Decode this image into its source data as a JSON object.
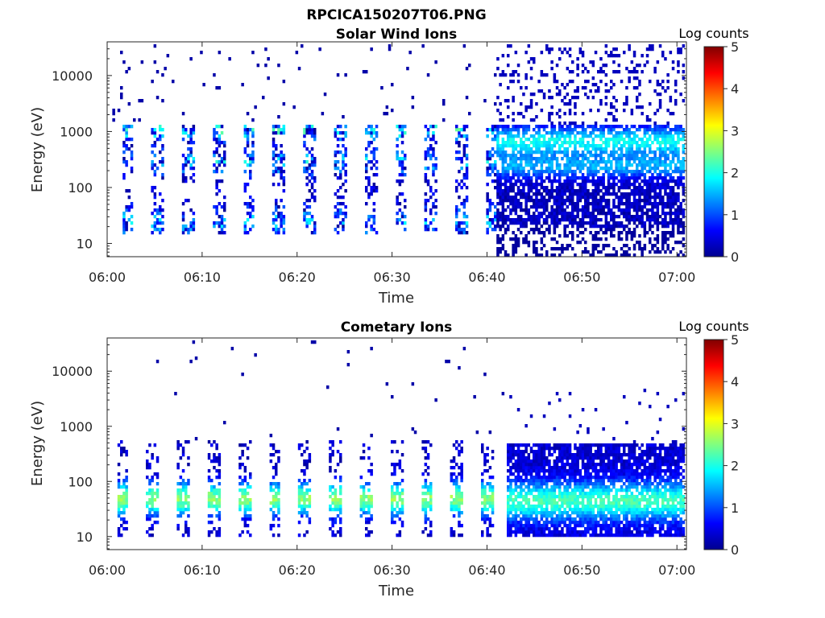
{
  "figure": {
    "title": "RPCICA150207T06.PNG"
  },
  "chart_data": [
    {
      "type": "heatmap",
      "title": "Solar Wind Ions",
      "xlabel": "Time",
      "ylabel": "Energy (eV)",
      "x_ticks": [
        "06:00",
        "06:10",
        "06:20",
        "06:30",
        "06:40",
        "06:50",
        "07:00"
      ],
      "x_range_minutes": [
        0,
        61
      ],
      "y_ticks": [
        10,
        100,
        1000,
        10000
      ],
      "y_tick_labels": [
        "10",
        "100",
        "1000",
        "10000"
      ],
      "y_scale": "log",
      "y_range_eV": [
        5.8,
        40000
      ],
      "colorbar": {
        "title": "Log counts",
        "range": [
          0,
          5
        ],
        "ticks": [
          "0",
          "1",
          "2",
          "3",
          "4",
          "5"
        ],
        "colormap": "jet"
      },
      "patterns": {
        "sweep_period_min": 3.2,
        "sweep_start_min": 1.5,
        "sparse_until_min": 37,
        "band_peak_eV": 1100,
        "band_mid_eV": 300,
        "band_low_eV": 25,
        "dense_energy_range_eV": [
          20,
          1500
        ],
        "dense_start_min": 41
      }
    },
    {
      "type": "heatmap",
      "title": "Cometary Ions",
      "xlabel": "Time",
      "ylabel": "Energy (eV)",
      "x_ticks": [
        "06:00",
        "06:10",
        "06:20",
        "06:30",
        "06:40",
        "06:50",
        "07:00"
      ],
      "x_range_minutes": [
        0,
        61
      ],
      "y_ticks": [
        10,
        100,
        1000,
        10000
      ],
      "y_tick_labels": [
        "10",
        "100",
        "1000",
        "10000"
      ],
      "y_scale": "log",
      "y_range_eV": [
        5.8,
        40000
      ],
      "colorbar": {
        "title": "Log counts",
        "range": [
          0,
          5
        ],
        "ticks": [
          "0",
          "1",
          "2",
          "3",
          "4",
          "5"
        ],
        "colormap": "jet"
      },
      "patterns": {
        "sweep_period_min": 3.2,
        "sweep_start_min": 1.0,
        "sparse_until_min": 41,
        "band_peak_eV": 50,
        "dense_energy_range_eV": [
          10,
          500
        ],
        "dense_start_min": 42
      }
    }
  ]
}
